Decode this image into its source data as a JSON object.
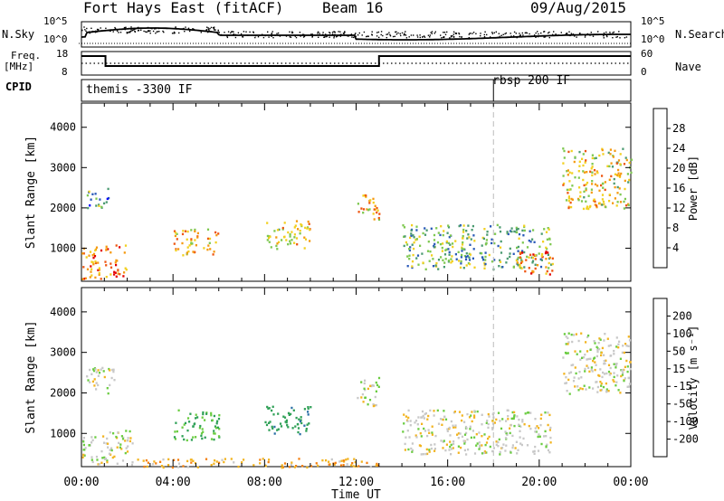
{
  "header": {
    "radar": "Fort Hays East (fitACF)",
    "beam": "Beam 16",
    "date": "09/Aug/2015"
  },
  "summary": {
    "nsky_label": "N.Sky",
    "nsky_ticks": [
      "10^5",
      "10^0"
    ],
    "nsearch_label": "N.Search",
    "nsearch_ticks": [
      "10^5",
      "10^0"
    ],
    "freq_label": "Freq.",
    "freq_unit": "[MHz]",
    "freq_ticks": [
      "18",
      "8"
    ],
    "nave_label": "Nave",
    "nave_ticks": [
      "60",
      "0"
    ],
    "cpid_label": "CPID",
    "cpid_segments": [
      {
        "start_hour": 0.0,
        "label": "themis -3300 IF"
      },
      {
        "start_hour": 18.0,
        "label": "rbsp 200 IF"
      }
    ]
  },
  "time_axis": {
    "title": "Time UT",
    "ticks": [
      "00:00",
      "04:00",
      "08:00",
      "12:00",
      "16:00",
      "20:00",
      "00:00"
    ],
    "range_hours": [
      0,
      24
    ]
  },
  "range_axis": {
    "title": "Slant Range [km]",
    "ticks": [
      1000,
      2000,
      3000,
      4000
    ],
    "range_km": [
      180,
      4600
    ]
  },
  "colorbars": {
    "power": {
      "title": "Power [dB]",
      "ticks": [
        "4",
        "8",
        "12",
        "16",
        "20",
        "24",
        "28"
      ],
      "colors": [
        "#0000ff",
        "#2a5ab8",
        "#4a9a70",
        "#7ec850",
        "#f2d020",
        "#f59a10",
        "#ee5510",
        "#e30000"
      ]
    },
    "velocity": {
      "title": "Velocity [m s⁻¹]",
      "ticks": [
        "200",
        "100",
        "50",
        "15",
        "-15",
        "-50",
        "-100",
        "-200"
      ],
      "colors": [
        "#1020c8",
        "#2a6fa6",
        "#2ea056",
        "#6acc40",
        "#c8c8c8",
        "#f2b420",
        "#f58010",
        "#ff5a10",
        "#ff0000"
      ]
    }
  },
  "chart_data": [
    {
      "type": "heatmap",
      "title": "Power [dB]",
      "xlabel": "Time UT",
      "ylabel": "Slant Range [km]",
      "xlim_hours": [
        0,
        24
      ],
      "ylim_km": [
        180,
        4600
      ],
      "regions": [
        {
          "time_start": 0.0,
          "time_end": 2.0,
          "range_start": 250,
          "range_end": 1100,
          "mean_value": 24
        },
        {
          "time_start": 0.2,
          "time_end": 1.2,
          "range_start": 2000,
          "range_end": 2500,
          "mean_value": 10
        },
        {
          "time_start": 4.0,
          "time_end": 6.0,
          "range_start": 850,
          "range_end": 1500,
          "mean_value": 20
        },
        {
          "time_start": 8.0,
          "time_end": 10.0,
          "range_start": 1000,
          "range_end": 1700,
          "mean_value": 18
        },
        {
          "time_start": 12.0,
          "time_end": 13.0,
          "range_start": 1700,
          "range_end": 2400,
          "mean_value": 20
        },
        {
          "time_start": 14.0,
          "time_end": 20.5,
          "range_start": 500,
          "range_end": 1600,
          "mean_value": 12
        },
        {
          "time_start": 19.0,
          "time_end": 20.6,
          "range_start": 350,
          "range_end": 950,
          "mean_value": 24
        },
        {
          "time_start": 21.0,
          "time_end": 24.0,
          "range_start": 2000,
          "range_end": 3500,
          "mean_value": 18
        }
      ]
    },
    {
      "type": "heatmap",
      "title": "Velocity [m s⁻¹]",
      "xlabel": "Time UT",
      "ylabel": "Slant Range [km]",
      "xlim_hours": [
        0,
        24
      ],
      "ylim_km": [
        180,
        4600
      ],
      "regions": [
        {
          "time_start": 0.0,
          "time_end": 2.2,
          "range_start": 250,
          "range_end": 1100,
          "mean_value": 0
        },
        {
          "time_start": 0.2,
          "time_end": 1.4,
          "range_start": 2000,
          "range_end": 2700,
          "mean_value": 0
        },
        {
          "time_start": 4.0,
          "time_end": 6.0,
          "range_start": 850,
          "range_end": 1600,
          "mean_value": 50
        },
        {
          "time_start": 8.0,
          "time_end": 10.0,
          "range_start": 1000,
          "range_end": 1700,
          "mean_value": 80
        },
        {
          "time_start": 2.0,
          "time_end": 13.0,
          "range_start": 180,
          "range_end": 400,
          "mean_value": -40
        },
        {
          "time_start": 12.0,
          "time_end": 13.0,
          "range_start": 1700,
          "range_end": 2400,
          "mean_value": 0
        },
        {
          "time_start": 14.0,
          "time_end": 20.5,
          "range_start": 500,
          "range_end": 1600,
          "mean_value": 0
        },
        {
          "time_start": 21.0,
          "time_end": 24.0,
          "range_start": 2000,
          "range_end": 3500,
          "mean_value": 0
        }
      ]
    }
  ]
}
